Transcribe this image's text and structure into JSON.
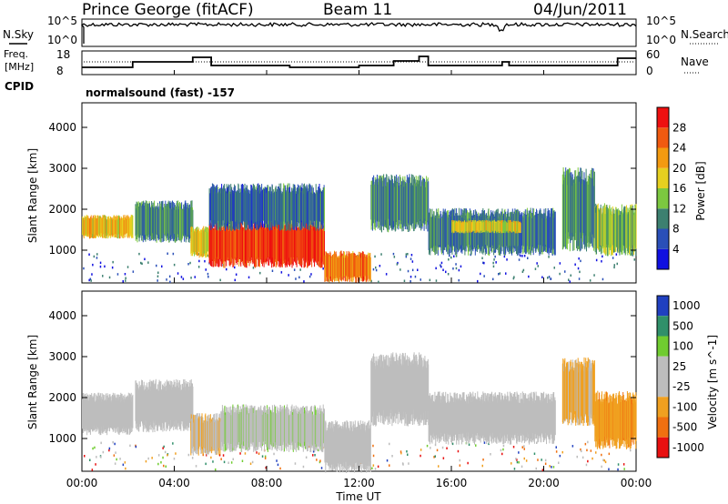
{
  "header": {
    "station": "Prince George (fitACF)",
    "beam": "Beam 11",
    "date": "04/Jun/2011"
  },
  "noise_panel": {
    "left_label": "N.Sky",
    "right_label": "N.Search",
    "tick_top": "10^5",
    "tick_bottom": "10^0"
  },
  "freq_panel": {
    "left_label_1": "Freq.",
    "left_label_2": "[MHz]",
    "right_label": "Nave",
    "left_ticks": [
      "18",
      "8"
    ],
    "right_ticks": [
      "60",
      "0"
    ],
    "cpid_label": "CPID",
    "cpid_text": "normalsound (fast) -157"
  },
  "colors": {
    "power": [
      "#1010e0",
      "#2a4fb8",
      "#3d8070",
      "#7cc840",
      "#e6d020",
      "#f39a10",
      "#f05a10",
      "#ee1010"
    ],
    "velocity": [
      "#e81010",
      "#f07010",
      "#f0a020",
      "#bdbdbd",
      "#bdbdbd",
      "#70cc30",
      "#30906a",
      "#2040c0"
    ]
  },
  "chart_data": [
    {
      "type": "heatmap",
      "name": "Power",
      "ylabel": "Slant Range [km]",
      "yticks": [
        "1000",
        "2000",
        "3000",
        "4000"
      ],
      "ylim": [
        200,
        4600
      ],
      "xlim": [
        0,
        24
      ],
      "colorbar": {
        "label": "Power [dB]",
        "ticks": [
          "4",
          "8",
          "12",
          "16",
          "20",
          "24",
          "28"
        ],
        "range": [
          0,
          32
        ]
      },
      "regions": [
        {
          "t0": 0.0,
          "t1": 2.2,
          "r0": 1350,
          "r1": 1800,
          "value": 20
        },
        {
          "t0": 2.3,
          "t1": 4.8,
          "r0": 1300,
          "r1": 2100,
          "value": 10
        },
        {
          "t0": 4.7,
          "t1": 5.6,
          "r0": 900,
          "r1": 1500,
          "value": 18
        },
        {
          "t0": 5.5,
          "t1": 10.5,
          "r0": 700,
          "r1": 1600,
          "value": 28
        },
        {
          "t0": 5.5,
          "t1": 10.5,
          "r0": 1600,
          "r1": 2500,
          "value": 8
        },
        {
          "t0": 10.5,
          "t1": 12.5,
          "r0": 300,
          "r1": 900,
          "value": 24
        },
        {
          "t0": 12.5,
          "t1": 15.0,
          "r0": 1600,
          "r1": 2700,
          "value": 10
        },
        {
          "t0": 15.0,
          "t1": 20.5,
          "r0": 1000,
          "r1": 1900,
          "value": 9
        },
        {
          "t0": 16.0,
          "t1": 19.0,
          "r0": 1450,
          "r1": 1700,
          "value": 18
        },
        {
          "t0": 20.8,
          "t1": 22.2,
          "r0": 1200,
          "r1": 2800,
          "value": 10
        },
        {
          "t0": 22.2,
          "t1": 24.0,
          "r0": 1000,
          "r1": 2000,
          "value": 14
        }
      ]
    },
    {
      "type": "heatmap",
      "name": "Velocity",
      "ylabel": "Slant Range [km]",
      "yticks": [
        "1000",
        "2000",
        "3000",
        "4000"
      ],
      "ylim": [
        200,
        4600
      ],
      "xlim": [
        0,
        24
      ],
      "colorbar": {
        "label": "Velocity [m s^-1]",
        "ticks": [
          "1000",
          "500",
          "100",
          "25",
          "-25",
          "-100",
          "-500",
          "-1000"
        ],
        "range": [
          -1000,
          1000
        ]
      },
      "regions": [
        {
          "t0": 0.0,
          "t1": 2.2,
          "r0": 1200,
          "r1": 2000,
          "value": 0
        },
        {
          "t0": 2.3,
          "t1": 4.8,
          "r0": 1300,
          "r1": 2300,
          "value": 0
        },
        {
          "t0": 4.7,
          "t1": 6.0,
          "r0": 700,
          "r1": 1500,
          "value": -200
        },
        {
          "t0": 6.0,
          "t1": 10.5,
          "r0": 800,
          "r1": 1700,
          "value": 150
        },
        {
          "t0": 10.5,
          "t1": 12.5,
          "r0": 300,
          "r1": 1300,
          "value": 0
        },
        {
          "t0": 12.5,
          "t1": 15.0,
          "r0": 1500,
          "r1": 2900,
          "value": 0
        },
        {
          "t0": 15.0,
          "t1": 20.5,
          "r0": 1000,
          "r1": 2000,
          "value": 0
        },
        {
          "t0": 20.8,
          "t1": 22.2,
          "r0": 1500,
          "r1": 2800,
          "value": -300
        },
        {
          "t0": 22.2,
          "t1": 24.0,
          "r0": 900,
          "r1": 2000,
          "value": -400
        }
      ]
    }
  ],
  "xaxis": {
    "ticks": [
      "00:00",
      "04:00",
      "08:00",
      "12:00",
      "16:00",
      "20:00",
      "00:00"
    ],
    "label": "Time UT"
  }
}
